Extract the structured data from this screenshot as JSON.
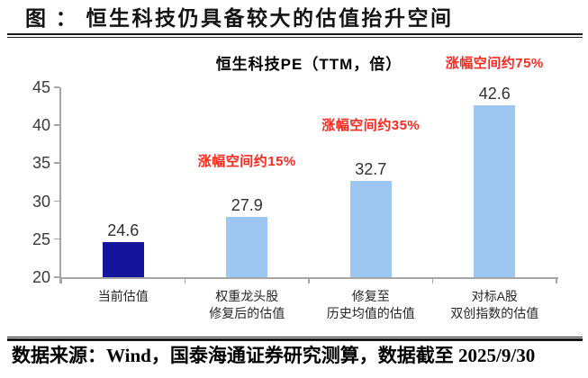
{
  "figure": {
    "title": "图 ： 恒生科技仍具备较大的估值抬升空间"
  },
  "chart_data": {
    "type": "bar",
    "title": "恒生科技PE（TTM，倍）",
    "categories": [
      "当前估值",
      "权重龙头股\n修复后的估值",
      "修复至\n历史均值的估值",
      "对标A股\n双创指数的估值"
    ],
    "values": [
      24.6,
      27.9,
      32.7,
      42.6
    ],
    "value_labels": [
      "24.6",
      "27.9",
      "32.7",
      "42.6"
    ],
    "bar_colors": [
      "#15159B",
      "#9CC7F3",
      "#9CC7F3",
      "#9CC7F3"
    ],
    "annotations": [
      null,
      "涨幅空间约15%",
      "涨幅空间约35%",
      "涨幅空间约75%"
    ],
    "annotation_color": "#F72A1F",
    "axis_color": "#A6A6A6",
    "xlabel": "",
    "ylabel": "",
    "ylim": [
      20,
      45
    ],
    "yticks": [
      20,
      25,
      30,
      35,
      40,
      45
    ],
    "grid": false,
    "legend": "none"
  },
  "footer": {
    "source": "数据来源：Wind，国泰海通证券研究测算，数据截至 2025/9/30"
  }
}
